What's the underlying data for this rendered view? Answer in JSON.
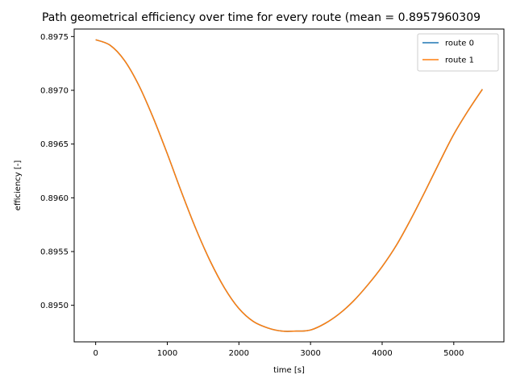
{
  "chart_data": {
    "type": "line",
    "title": "Path geometrical efficiency over time for every route (mean = 0.8957960309",
    "xlabel": "time [s]",
    "ylabel": "efficiency [-]",
    "xlim": [
      -300,
      5700
    ],
    "ylim": [
      0.89466,
      0.89757
    ],
    "xticks": [
      {
        "value": 0,
        "label": "0"
      },
      {
        "value": 1000,
        "label": "1000"
      },
      {
        "value": 2000,
        "label": "2000"
      },
      {
        "value": 3000,
        "label": "3000"
      },
      {
        "value": 4000,
        "label": "4000"
      },
      {
        "value": 5000,
        "label": "5000"
      }
    ],
    "yticks": [
      {
        "value": 0.895,
        "label": "0.8950"
      },
      {
        "value": 0.8955,
        "label": "0.8955"
      },
      {
        "value": 0.896,
        "label": "0.8960"
      },
      {
        "value": 0.8965,
        "label": "0.8965"
      },
      {
        "value": 0.897,
        "label": "0.8970"
      },
      {
        "value": 0.8975,
        "label": "0.8975"
      }
    ],
    "grid": false,
    "legend_position": "top-right",
    "series": [
      {
        "name": "route 0",
        "color": "#1f77b4",
        "x": [
          0,
          200,
          400,
          600,
          800,
          1000,
          1200,
          1400,
          1600,
          1800,
          2000,
          2200,
          2400,
          2600,
          2800,
          3000,
          3200,
          3400,
          3600,
          3800,
          4000,
          4200,
          4400,
          4600,
          4800,
          5000,
          5200,
          5400
        ],
        "y": [
          0.89747,
          0.89742,
          0.89728,
          0.89705,
          0.89675,
          0.89641,
          0.89605,
          0.89571,
          0.89541,
          0.89516,
          0.89497,
          0.89485,
          0.89479,
          0.89476,
          0.89476,
          0.89477,
          0.89483,
          0.89492,
          0.89504,
          0.89519,
          0.89536,
          0.89556,
          0.8958,
          0.89606,
          0.89633,
          0.89659,
          0.89681,
          0.89701
        ]
      },
      {
        "name": "route 1",
        "color": "#ff7f0e",
        "x": [
          0,
          200,
          400,
          600,
          800,
          1000,
          1200,
          1400,
          1600,
          1800,
          2000,
          2200,
          2400,
          2600,
          2800,
          3000,
          3200,
          3400,
          3600,
          3800,
          4000,
          4200,
          4400,
          4600,
          4800,
          5000,
          5200,
          5400
        ],
        "y": [
          0.89747,
          0.89742,
          0.89728,
          0.89705,
          0.89675,
          0.89641,
          0.89605,
          0.89571,
          0.89541,
          0.89516,
          0.89497,
          0.89485,
          0.89479,
          0.89476,
          0.89476,
          0.89477,
          0.89483,
          0.89492,
          0.89504,
          0.89519,
          0.89536,
          0.89556,
          0.8958,
          0.89606,
          0.89633,
          0.89659,
          0.89681,
          0.89701
        ]
      }
    ]
  }
}
